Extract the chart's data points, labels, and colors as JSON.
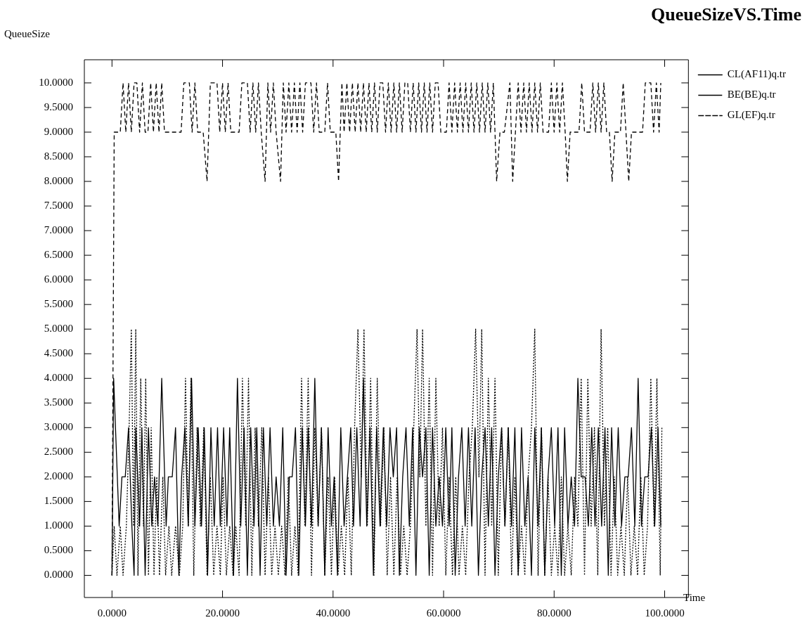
{
  "chart_data": {
    "type": "line",
    "title": "QueueSizeVS.Time",
    "xlabel": "Time",
    "ylabel": "QueueSize",
    "legend": "top right",
    "xlim": [
      -5,
      104.3
    ],
    "ylim": [
      -0.45,
      10.47
    ],
    "xticks": [
      {
        "value": 0,
        "label": "0.0000"
      },
      {
        "value": 20,
        "label": "20.0000"
      },
      {
        "value": 40,
        "label": "40.0000"
      },
      {
        "value": 60,
        "label": "60.0000"
      },
      {
        "value": 80,
        "label": "80.0000"
      },
      {
        "value": 100,
        "label": "100.0000"
      }
    ],
    "yticks": [
      {
        "value": 0,
        "label": "0.0000"
      },
      {
        "value": 0.5,
        "label": "0.5000"
      },
      {
        "value": 1,
        "label": "1.0000"
      },
      {
        "value": 1.5,
        "label": "1.5000"
      },
      {
        "value": 2,
        "label": "2.0000"
      },
      {
        "value": 2.5,
        "label": "2.5000"
      },
      {
        "value": 3,
        "label": "3.0000"
      },
      {
        "value": 3.5,
        "label": "3.5000"
      },
      {
        "value": 4,
        "label": "4.0000"
      },
      {
        "value": 4.5,
        "label": "4.5000"
      },
      {
        "value": 5,
        "label": "5.0000"
      },
      {
        "value": 5.5,
        "label": "5.5000"
      },
      {
        "value": 6,
        "label": "6.0000"
      },
      {
        "value": 6.5,
        "label": "6.5000"
      },
      {
        "value": 7,
        "label": "7.0000"
      },
      {
        "value": 7.5,
        "label": "7.5000"
      },
      {
        "value": 8,
        "label": "8.0000"
      },
      {
        "value": 8.5,
        "label": "8.5000"
      },
      {
        "value": 9,
        "label": "9.0000"
      },
      {
        "value": 9.5,
        "label": "9.5000"
      },
      {
        "value": 10,
        "label": "10.0000"
      }
    ],
    "series": [
      {
        "name": "CL(AF11)q.tr",
        "color": "#000000",
        "line_style": "solid",
        "x": [
          0,
          0.3,
          1.3,
          1.8,
          2.4,
          3,
          3.6,
          4,
          4.3,
          5,
          5.4,
          6,
          6.6,
          7.2,
          7.7,
          8.3,
          9,
          9.8,
          10.2,
          10.9,
          11.5,
          12.1,
          12.6,
          13.2,
          13.8,
          14.4,
          15,
          15.6,
          16.2,
          16.7,
          17.3,
          17.9,
          18.5,
          19.1,
          19.6,
          20.2,
          20.8,
          21.3,
          22,
          22.7,
          23.3,
          23.9,
          24.5,
          25.1,
          25.7,
          26.2,
          26.8,
          27.4,
          28,
          28.6,
          29.2,
          29.7,
          30.3,
          30.9,
          31.5,
          32.1,
          32.6,
          33.2,
          33.8,
          34.4,
          35,
          35.5,
          36.1,
          36.7,
          37.3,
          37.9,
          38.5,
          39.1,
          39.7,
          40.2,
          40.8,
          41.4,
          42,
          42.6,
          43.2,
          43.7,
          44.3,
          44.9,
          45.5,
          46.1,
          46.7,
          47.3,
          47.9,
          48.5,
          49.1,
          49.7,
          50.3,
          50.9,
          51.5,
          52,
          52.6,
          53.2,
          53.8,
          54.4,
          55,
          55.6,
          56.2,
          56.8,
          57.4,
          58,
          58.6,
          59.2,
          59.8,
          60.4,
          61,
          61.5,
          62.1,
          62.7,
          63.3,
          63.9,
          64.5,
          65.1,
          65.7,
          66.3,
          66.9,
          67.5,
          68.1,
          68.7,
          69.3,
          69.9,
          70.5,
          71.1,
          71.7,
          72.3,
          72.9,
          73.5,
          74.1,
          74.7,
          75.3,
          75.9,
          76.5,
          77.1,
          77.7,
          78.3,
          78.9,
          79.5,
          80.1,
          80.7,
          81.3,
          81.9,
          82.5,
          83.1,
          83.7,
          84.3,
          84.9,
          85.6,
          86.2,
          86.8,
          87.4,
          88,
          88.6,
          89.2,
          89.8,
          90.4,
          91,
          91.6,
          92.2,
          92.8,
          93.4,
          94,
          94.6,
          95.2,
          95.8,
          96.4,
          97,
          97.6,
          98.2,
          98.8,
          99.3
        ],
        "values": [
          0,
          4,
          1,
          2,
          2,
          3,
          1,
          0,
          3,
          1,
          3,
          0,
          3,
          1,
          2,
          1,
          4,
          1,
          2,
          2,
          3,
          0,
          2,
          3,
          1,
          4,
          1,
          3,
          1,
          3,
          0,
          3,
          1,
          3,
          1,
          3,
          1,
          3,
          0,
          4,
          1,
          3,
          0,
          3,
          1,
          3,
          0,
          3,
          1,
          3,
          1,
          2,
          1,
          3,
          0,
          2,
          2,
          3,
          0,
          3,
          1,
          3,
          1,
          4,
          1,
          3,
          0,
          3,
          1,
          2,
          0,
          3,
          1,
          2,
          3,
          1,
          3,
          1,
          4,
          1,
          3,
          0,
          3,
          1,
          3,
          1,
          3,
          2,
          3,
          0,
          2,
          3,
          1,
          3,
          0,
          3,
          2,
          3,
          0,
          3,
          1,
          2,
          1,
          3,
          1,
          3,
          0,
          2,
          3,
          1,
          3,
          1,
          3,
          0,
          2,
          3,
          1,
          3,
          0,
          2,
          3,
          1,
          3,
          1,
          3,
          0,
          3,
          1,
          2,
          0,
          3,
          1,
          3,
          0,
          2,
          3,
          1,
          3,
          0,
          3,
          1,
          2,
          1,
          4,
          2,
          2,
          1,
          3,
          1,
          3,
          1,
          3,
          0,
          3,
          1,
          3,
          1,
          2,
          2,
          3,
          1,
          4,
          1,
          2,
          2,
          3,
          1,
          3,
          1
        ]
      },
      {
        "name": "BE(BE)q.tr",
        "color": "#000000",
        "line_style": "dotted",
        "x": [
          0,
          0.4,
          0.9,
          1.5,
          2,
          2.6,
          3.1,
          3.5,
          3.9,
          4.3,
          4.7,
          5.2,
          5.7,
          6.1,
          6.6,
          7.1,
          7.6,
          8.1,
          8.6,
          9.2,
          9.7,
          10.3,
          10.8,
          11.5,
          12.2,
          12.8,
          13.3,
          13.8,
          14.3,
          14.8,
          15.4,
          16,
          16.6,
          17.2,
          17.8,
          18.4,
          19,
          19.6,
          20.1,
          20.7,
          21.3,
          21.9,
          22.4,
          23,
          23.6,
          24.2,
          24.7,
          25.3,
          25.9,
          26.5,
          27.1,
          27.7,
          28.3,
          28.9,
          29.5,
          30.1,
          30.7,
          31.3,
          31.9,
          32.5,
          33.1,
          33.7,
          34.3,
          34.9,
          35.5,
          36.1,
          36.7,
          37.3,
          37.9,
          38.5,
          39.1,
          39.7,
          40.3,
          40.9,
          41.5,
          42.1,
          42.7,
          43.3,
          43.9,
          44.5,
          45.1,
          45.6,
          46.2,
          46.8,
          47.4,
          48,
          48.6,
          49.2,
          49.8,
          50.4,
          51,
          51.6,
          52.2,
          52.8,
          53.4,
          54,
          54.6,
          55.2,
          55.7,
          56.2,
          56.8,
          57.4,
          58,
          58.6,
          59.2,
          59.8,
          60.4,
          61,
          61.6,
          62.2,
          62.8,
          63.4,
          64,
          64.6,
          65.2,
          65.8,
          66.4,
          66.9,
          67.5,
          68.1,
          68.7,
          69.3,
          69.9,
          70.5,
          71.1,
          71.7,
          72.3,
          72.9,
          73.5,
          74.1,
          74.7,
          75.3,
          75.9,
          76.5,
          77.1,
          77.7,
          78.3,
          78.9,
          79.5,
          80.1,
          80.7,
          81.3,
          81.9,
          82.5,
          83.1,
          83.7,
          84.3,
          84.9,
          85.5,
          86.1,
          86.7,
          87.3,
          87.9,
          88.5,
          89.1,
          89.7,
          90.3,
          90.9,
          91.5,
          92.1,
          92.7,
          93.3,
          93.9,
          94.5,
          95.1,
          95.7,
          96.3,
          96.9,
          97.5,
          98.1,
          98.6,
          99.2,
          99.5
        ],
        "values": [
          0,
          1,
          0,
          1,
          0,
          1,
          3,
          5,
          1,
          5,
          0,
          4,
          1,
          4,
          0,
          3,
          0,
          2,
          0,
          2,
          0,
          1,
          0,
          1,
          0,
          1,
          4,
          1,
          4,
          0,
          3,
          1,
          3,
          0,
          2,
          0,
          1,
          0,
          2,
          0,
          1,
          0,
          1,
          0,
          4,
          1,
          4,
          0,
          3,
          1,
          3,
          0,
          2,
          0,
          1,
          0,
          1,
          0,
          2,
          0,
          1,
          0,
          4,
          1,
          4,
          0,
          3,
          1,
          3,
          0,
          2,
          0,
          2,
          0,
          1,
          0,
          2,
          0,
          3,
          5,
          2,
          5,
          1,
          4,
          0,
          4,
          1,
          3,
          0,
          2,
          0,
          2,
          0,
          1,
          0,
          1,
          3,
          5,
          2,
          5,
          1,
          4,
          0,
          4,
          1,
          3,
          0,
          2,
          0,
          2,
          0,
          1,
          0,
          2,
          3,
          5,
          2,
          5,
          0,
          4,
          1,
          4,
          0,
          3,
          1,
          3,
          0,
          2,
          0,
          1,
          0,
          2,
          3,
          5,
          0,
          3,
          0,
          2,
          0,
          1,
          0,
          2,
          0,
          1,
          0,
          2,
          1,
          4,
          0,
          4,
          1,
          3,
          0,
          5,
          1,
          3,
          0,
          2,
          0,
          1,
          0,
          2,
          0,
          1,
          0,
          2,
          0,
          1,
          4,
          1,
          4,
          0,
          3
        ]
      },
      {
        "name": "GL(EF)q.tr",
        "color": "#000000",
        "line_style": "dashed",
        "x": [
          0,
          0.4,
          1.5,
          2,
          2.5,
          3,
          3.5,
          4,
          4.5,
          5,
          5.5,
          6,
          6.5,
          7,
          7.5,
          8,
          8.5,
          9,
          9.5,
          11,
          12.5,
          13,
          14,
          14.5,
          15,
          15.5,
          16.5,
          17.2,
          17.8,
          19,
          19.5,
          20,
          20.5,
          21,
          21.5,
          23,
          23.5,
          24.5,
          25,
          25.5,
          26,
          26.5,
          27,
          27.7,
          28.2,
          28.7,
          29.2,
          29.7,
          30.5,
          31,
          31.5,
          32,
          32.5,
          33,
          33.5,
          34,
          34.5,
          35,
          36,
          36.5,
          37,
          37.5,
          38.5,
          39,
          39.5,
          40.5,
          41,
          41.6,
          42,
          42.5,
          43,
          43.5,
          44,
          44.5,
          45,
          45.5,
          46,
          46.5,
          47,
          47.5,
          48,
          48.5,
          49,
          49.5,
          50,
          50.5,
          51,
          51.5,
          52,
          52.5,
          53,
          53.5,
          54,
          54.5,
          55,
          55.5,
          56,
          56.5,
          57,
          57.5,
          58,
          58.5,
          59,
          59.5,
          60.5,
          61,
          61.5,
          62,
          62.5,
          63,
          63.5,
          64,
          64.5,
          65,
          65.5,
          66,
          66.5,
          67,
          67.5,
          68,
          68.5,
          69,
          69.6,
          70.2,
          71,
          72,
          72.5,
          73,
          73.5,
          74,
          74.5,
          75,
          75.5,
          76,
          76.5,
          77,
          77.5,
          78,
          79,
          79.5,
          80,
          80.5,
          81,
          81.5,
          82,
          82.4,
          82.9,
          84.5,
          85,
          85.5,
          86.5,
          87,
          87.5,
          88,
          88.5,
          89,
          89.5,
          90,
          90.5,
          91,
          92,
          92.5,
          93,
          93.5,
          94,
          96,
          96.5,
          97.5,
          98,
          98.5,
          99,
          99.3
        ],
        "values": [
          0,
          9,
          9,
          10,
          9,
          10,
          9,
          10,
          10,
          9,
          10,
          9,
          9,
          10,
          9,
          10,
          9,
          10,
          9,
          9,
          9,
          10,
          10,
          9,
          10,
          9,
          9,
          8,
          10,
          10,
          9,
          10,
          9,
          10,
          9,
          9,
          10,
          10,
          9,
          10,
          9,
          10,
          9,
          8,
          10,
          9,
          10,
          9,
          8,
          10,
          9,
          10,
          9,
          10,
          9,
          10,
          9,
          10,
          10,
          9,
          10,
          9,
          9,
          10,
          9,
          9,
          8,
          10,
          9,
          10,
          9,
          10,
          9,
          10,
          9,
          10,
          9,
          10,
          9,
          10,
          9,
          10,
          10,
          9,
          10,
          9,
          10,
          9,
          10,
          9,
          10,
          10,
          9,
          10,
          9,
          10,
          9,
          10,
          9,
          10,
          9,
          10,
          10,
          9,
          9,
          10,
          9,
          10,
          9,
          10,
          9,
          10,
          9,
          10,
          9,
          10,
          9,
          10,
          9,
          10,
          9,
          10,
          8,
          9,
          9,
          10,
          8,
          9,
          10,
          9,
          10,
          9,
          10,
          9,
          10,
          9,
          10,
          9,
          9,
          10,
          9,
          10,
          9,
          10,
          9,
          8,
          9,
          9,
          10,
          9,
          9,
          10,
          9,
          10,
          9,
          10,
          9,
          9,
          8,
          9,
          9,
          10,
          9,
          8,
          9,
          9,
          10,
          10,
          9,
          10,
          9,
          10
        ]
      }
    ]
  }
}
